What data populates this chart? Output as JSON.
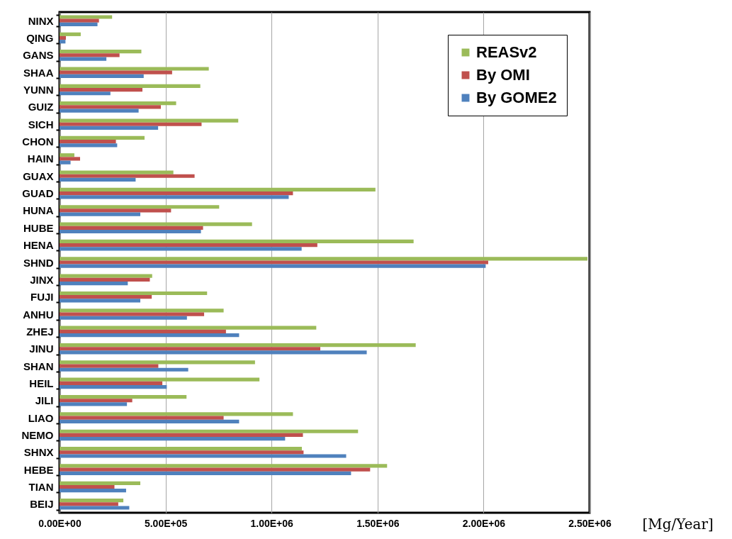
{
  "chart_data": {
    "type": "bar",
    "orientation": "horizontal",
    "xlabel": "[Mg/Year]",
    "categories": [
      "NINX",
      "QING",
      "GANS",
      "SHAA",
      "YUNN",
      "GUIZ",
      "SICH",
      "CHON",
      "HAIN",
      "GUAX",
      "GUAD",
      "HUNA",
      "HUBE",
      "HENA",
      "SHND",
      "JINX",
      "FUJI",
      "ANHU",
      "ZHEJ",
      "JINU",
      "SHAN",
      "HEIL",
      "JILI",
      "LIAO",
      "NEMO",
      "SHNX",
      "HEBE",
      "TIAN",
      "BEIJ"
    ],
    "series": [
      {
        "name": "REASv2",
        "color": "#9bbb59",
        "values": [
          248000,
          100000,
          386000,
          704000,
          664000,
          550000,
          843000,
          401000,
          70000,
          537000,
          1490000,
          753000,
          908000,
          1670000,
          2490000,
          437000,
          696000,
          774000,
          1211000,
          1680000,
          922000,
          943000,
          599000,
          1101000,
          1408000,
          1143000,
          1545000,
          381000,
          301000
        ]
      },
      {
        "name": "By OMI",
        "color": "#c0504d",
        "values": [
          186000,
          30000,
          283000,
          531000,
          391000,
          478000,
          670000,
          266000,
          97000,
          637000,
          1101000,
          526000,
          677000,
          1216000,
          2022000,
          426000,
          435000,
          682000,
          785000,
          1230000,
          466000,
          485000,
          343000,
          774000,
          1148000,
          1151000,
          1465000,
          259000,
          277000
        ]
      },
      {
        "name": "By GOME2",
        "color": "#4f81bd",
        "values": [
          179000,
          28000,
          221000,
          397000,
          240000,
          373000,
          465000,
          272000,
          52000,
          359000,
          1081000,
          381000,
          667000,
          1142000,
          2010000,
          322000,
          381000,
          601000,
          847000,
          1449000,
          607000,
          506000,
          318000,
          847000,
          1064000,
          1352000,
          1375000,
          314000,
          329000
        ]
      }
    ],
    "xlim": [
      0,
      2500000
    ],
    "xticks": [
      {
        "value": 0,
        "label": "0.00E+00"
      },
      {
        "value": 500000,
        "label": "5.00E+05"
      },
      {
        "value": 1000000,
        "label": "1.00E+06"
      },
      {
        "value": 1500000,
        "label": "1.50E+06"
      },
      {
        "value": 2000000,
        "label": "2.00E+06"
      },
      {
        "value": 2500000,
        "label": "2.50E+06"
      }
    ],
    "grid": "x",
    "legend": "top right"
  }
}
